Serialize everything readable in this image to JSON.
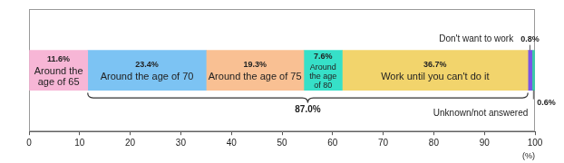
{
  "chart_data": {
    "type": "bar",
    "orientation": "horizontal",
    "stacked": true,
    "data_labels": true,
    "grid": false,
    "tick_labels": "x",
    "categories": [
      null
    ],
    "series": [
      {
        "name": "Around the age of 65",
        "color": "#f7b6d6",
        "values": [
          11.6
        ],
        "value_labels": [
          "11.6%"
        ]
      },
      {
        "name": "Around the age of 70",
        "color": "#7cc3f3",
        "values": [
          23.4
        ],
        "value_labels": [
          "23.4%"
        ]
      },
      {
        "name": "Around the age of 75",
        "color": "#f9c093",
        "values": [
          19.3
        ],
        "value_labels": [
          "19.3%"
        ]
      },
      {
        "name": "Around the age of 80",
        "color": "#36e0c8",
        "values": [
          7.6
        ],
        "value_labels": [
          "7.6%"
        ]
      },
      {
        "name": "Work until you can't do it",
        "color": "#f2d46c",
        "values": [
          36.7
        ],
        "value_labels": [
          "36.7%"
        ]
      },
      {
        "name": "Don't want to work",
        "color": "#7a55e6",
        "values": [
          0.8
        ],
        "value_labels": [
          "0.8%"
        ]
      },
      {
        "name": "Unknown/not answered",
        "color": "#3fc9a8",
        "values": [
          0.6
        ],
        "value_labels": [
          "0.6%"
        ]
      }
    ],
    "xlim": [
      0,
      100
    ],
    "xticks": [
      0,
      10,
      20,
      30,
      40,
      50,
      60,
      70,
      80,
      90,
      100
    ],
    "xlabel": "(%)",
    "annotations": [
      {
        "text": "87.0%",
        "spans": [
          "Around the age of 70",
          "Around the age of 75",
          "Around the age of 80",
          "Work until you can't do it"
        ]
      }
    ]
  }
}
